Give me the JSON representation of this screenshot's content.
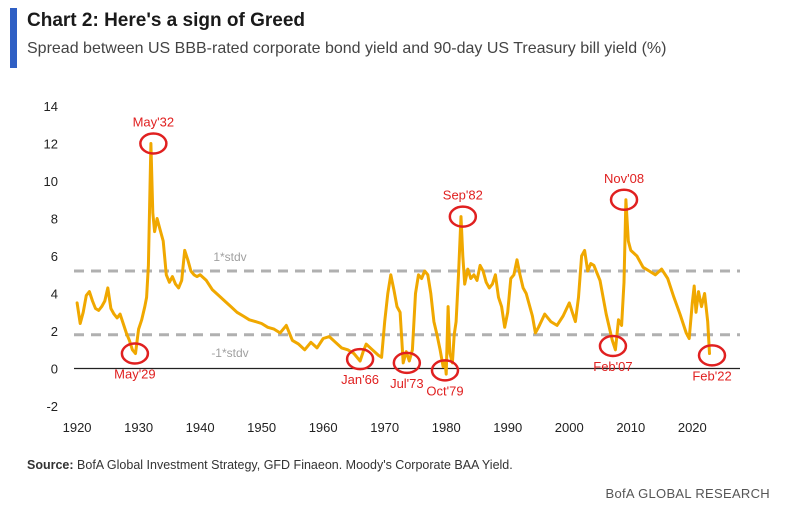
{
  "header": {
    "title": "Chart 2: Here's a sign of Greed",
    "subtitle": "Spread between US BBB-rated corporate bond yield and 90-day US Treasury bill yield (%)"
  },
  "source": {
    "label": "Source:",
    "text": "BofA Global Investment Strategy, GFD Finaeon. Moody's Corporate BAA Yield."
  },
  "footer": "BofA GLOBAL RESEARCH",
  "colors": {
    "series": "#f0a800",
    "band": "#b0b0b0",
    "annotation": "#e02020",
    "axis": "#222222"
  },
  "chart_data": {
    "type": "line",
    "title": "Chart 2: Here's a sign of Greed",
    "subtitle": "Spread between US BBB-rated corporate bond yield and 90-day US Treasury bill yield (%)",
    "xlabel": "",
    "ylabel": "",
    "xlim": [
      1919.5,
      2024.5
    ],
    "ylim": [
      -2,
      14
    ],
    "xticks": [
      1920,
      1930,
      1940,
      1950,
      1960,
      1970,
      1980,
      1990,
      2000,
      2010,
      2020
    ],
    "yticks": [
      -2,
      0,
      2,
      4,
      6,
      8,
      10,
      12,
      14
    ],
    "grid": false,
    "bands": [
      {
        "label": "1*stdv",
        "value": 5.2
      },
      {
        "label": "-1*stdv",
        "value": 1.8
      }
    ],
    "series": [
      {
        "x": [
          1920.0,
          1920.5,
          1921.0,
          1921.5,
          1922.0,
          1922.5,
          1923.0,
          1923.5,
          1924.0,
          1924.5,
          1925.0,
          1925.5,
          1926.0,
          1926.5,
          1927.0,
          1927.5,
          1928.0,
          1928.5,
          1929.0,
          1929.5,
          1930.0,
          1930.5,
          1931.0,
          1931.3,
          1931.6,
          1932.0,
          1932.3,
          1932.6,
          1933.0,
          1933.5,
          1934.0,
          1934.5,
          1935.0,
          1935.5,
          1936.0,
          1936.5,
          1937.0,
          1937.5,
          1938.0,
          1938.5,
          1939.0,
          1939.5,
          1940.0,
          1941.0,
          1942.0,
          1943.0,
          1944.0,
          1945.0,
          1946.0,
          1947.0,
          1948.0,
          1949.0,
          1950.0,
          1951.0,
          1952.0,
          1953.0,
          1954.0,
          1955.0,
          1956.0,
          1957.0,
          1958.0,
          1959.0,
          1960.0,
          1961.0,
          1962.0,
          1963.0,
          1964.0,
          1965.0,
          1966.0,
          1966.5,
          1967.0,
          1968.0,
          1969.0,
          1969.5,
          1970.0,
          1970.5,
          1971.0,
          1971.5,
          1972.0,
          1972.5,
          1973.0,
          1973.5,
          1974.0,
          1974.5,
          1975.0,
          1975.5,
          1976.0,
          1976.5,
          1977.0,
          1977.5,
          1978.0,
          1978.5,
          1979.0,
          1979.5,
          1979.8,
          1980.0,
          1980.3,
          1980.6,
          1981.0,
          1981.3,
          1981.6,
          1982.0,
          1982.4,
          1982.7,
          1983.0,
          1983.5,
          1984.0,
          1984.5,
          1985.0,
          1985.5,
          1986.0,
          1986.5,
          1987.0,
          1987.5,
          1988.0,
          1988.5,
          1989.0,
          1989.5,
          1990.0,
          1990.5,
          1991.0,
          1991.5,
          1992.0,
          1992.5,
          1993.0,
          1994.0,
          1994.5,
          1995.0,
          1996.0,
          1997.0,
          1998.0,
          1999.0,
          2000.0,
          2000.5,
          2001.0,
          2001.5,
          2002.0,
          2002.5,
          2003.0,
          2003.5,
          2004.0,
          2005.0,
          2006.0,
          2007.0,
          2007.5,
          2008.0,
          2008.5,
          2008.9,
          2009.2,
          2009.6,
          2010.0,
          2011.0,
          2012.0,
          2013.0,
          2014.0,
          2015.0,
          2016.0,
          2017.0,
          2018.0,
          2019.0,
          2019.5,
          2020.0,
          2020.3,
          2020.6,
          2021.0,
          2021.5,
          2022.0,
          2022.5,
          2022.8
        ],
        "y": [
          3.5,
          2.4,
          3.0,
          3.9,
          4.1,
          3.6,
          3.2,
          3.1,
          3.3,
          3.6,
          4.3,
          3.2,
          2.9,
          2.7,
          2.9,
          2.4,
          1.9,
          1.5,
          1.0,
          0.8,
          2.1,
          2.6,
          3.3,
          3.8,
          5.5,
          12.0,
          8.3,
          7.3,
          8.0,
          7.4,
          6.8,
          5.0,
          4.6,
          4.9,
          4.5,
          4.3,
          4.7,
          6.3,
          5.8,
          5.2,
          5.0,
          4.9,
          5.0,
          4.7,
          4.2,
          3.9,
          3.6,
          3.3,
          3.0,
          2.8,
          2.6,
          2.5,
          2.4,
          2.2,
          2.1,
          1.9,
          2.3,
          1.5,
          1.3,
          1.0,
          1.4,
          1.1,
          1.6,
          1.7,
          1.4,
          1.1,
          1.0,
          0.8,
          0.4,
          0.9,
          1.3,
          1.0,
          0.7,
          0.6,
          2.5,
          4.0,
          5.0,
          4.2,
          3.3,
          3.0,
          0.3,
          0.9,
          0.4,
          1.0,
          4.0,
          5.0,
          4.8,
          5.2,
          5.0,
          4.0,
          2.5,
          1.8,
          1.0,
          0.1,
          0.4,
          -0.3,
          3.3,
          0.8,
          0.3,
          1.8,
          2.5,
          5.0,
          8.1,
          6.0,
          4.5,
          5.3,
          4.8,
          5.0,
          4.7,
          5.5,
          5.2,
          4.6,
          4.3,
          4.5,
          5.0,
          3.8,
          3.3,
          2.2,
          3.0,
          4.8,
          5.0,
          5.8,
          5.0,
          4.3,
          4.0,
          2.8,
          1.9,
          2.2,
          2.9,
          2.5,
          2.3,
          2.8,
          3.5,
          3.0,
          2.5,
          3.8,
          6.0,
          6.3,
          5.2,
          5.6,
          5.5,
          4.7,
          2.9,
          1.5,
          1.0,
          2.6,
          2.3,
          4.6,
          9.0,
          6.8,
          6.3,
          6.0,
          5.4,
          5.2,
          5.0,
          5.3,
          4.8,
          3.8,
          2.9,
          1.9,
          1.6,
          3.5,
          4.4,
          3.0,
          4.1,
          3.3,
          4.0,
          2.5,
          0.8
        ]
      }
    ],
    "annotations": [
      {
        "label": "May'32",
        "x": 1932.4,
        "y": 12.0,
        "pos": "above"
      },
      {
        "label": "May'29",
        "x": 1929.4,
        "y": 0.8,
        "pos": "below"
      },
      {
        "label": "Jan'66",
        "x": 1966.0,
        "y": 0.5,
        "pos": "below"
      },
      {
        "label": "Jul'73",
        "x": 1973.6,
        "y": 0.3,
        "pos": "below"
      },
      {
        "label": "Oct'79",
        "x": 1979.8,
        "y": -0.1,
        "pos": "below"
      },
      {
        "label": "Sep'82",
        "x": 1982.7,
        "y": 8.1,
        "pos": "above"
      },
      {
        "label": "Nov'08",
        "x": 2008.9,
        "y": 9.0,
        "pos": "above"
      },
      {
        "label": "Feb'07",
        "x": 2007.1,
        "y": 1.2,
        "pos": "below"
      },
      {
        "label": "Feb'22",
        "x": 2023.2,
        "y": 0.7,
        "pos": "below"
      }
    ]
  }
}
